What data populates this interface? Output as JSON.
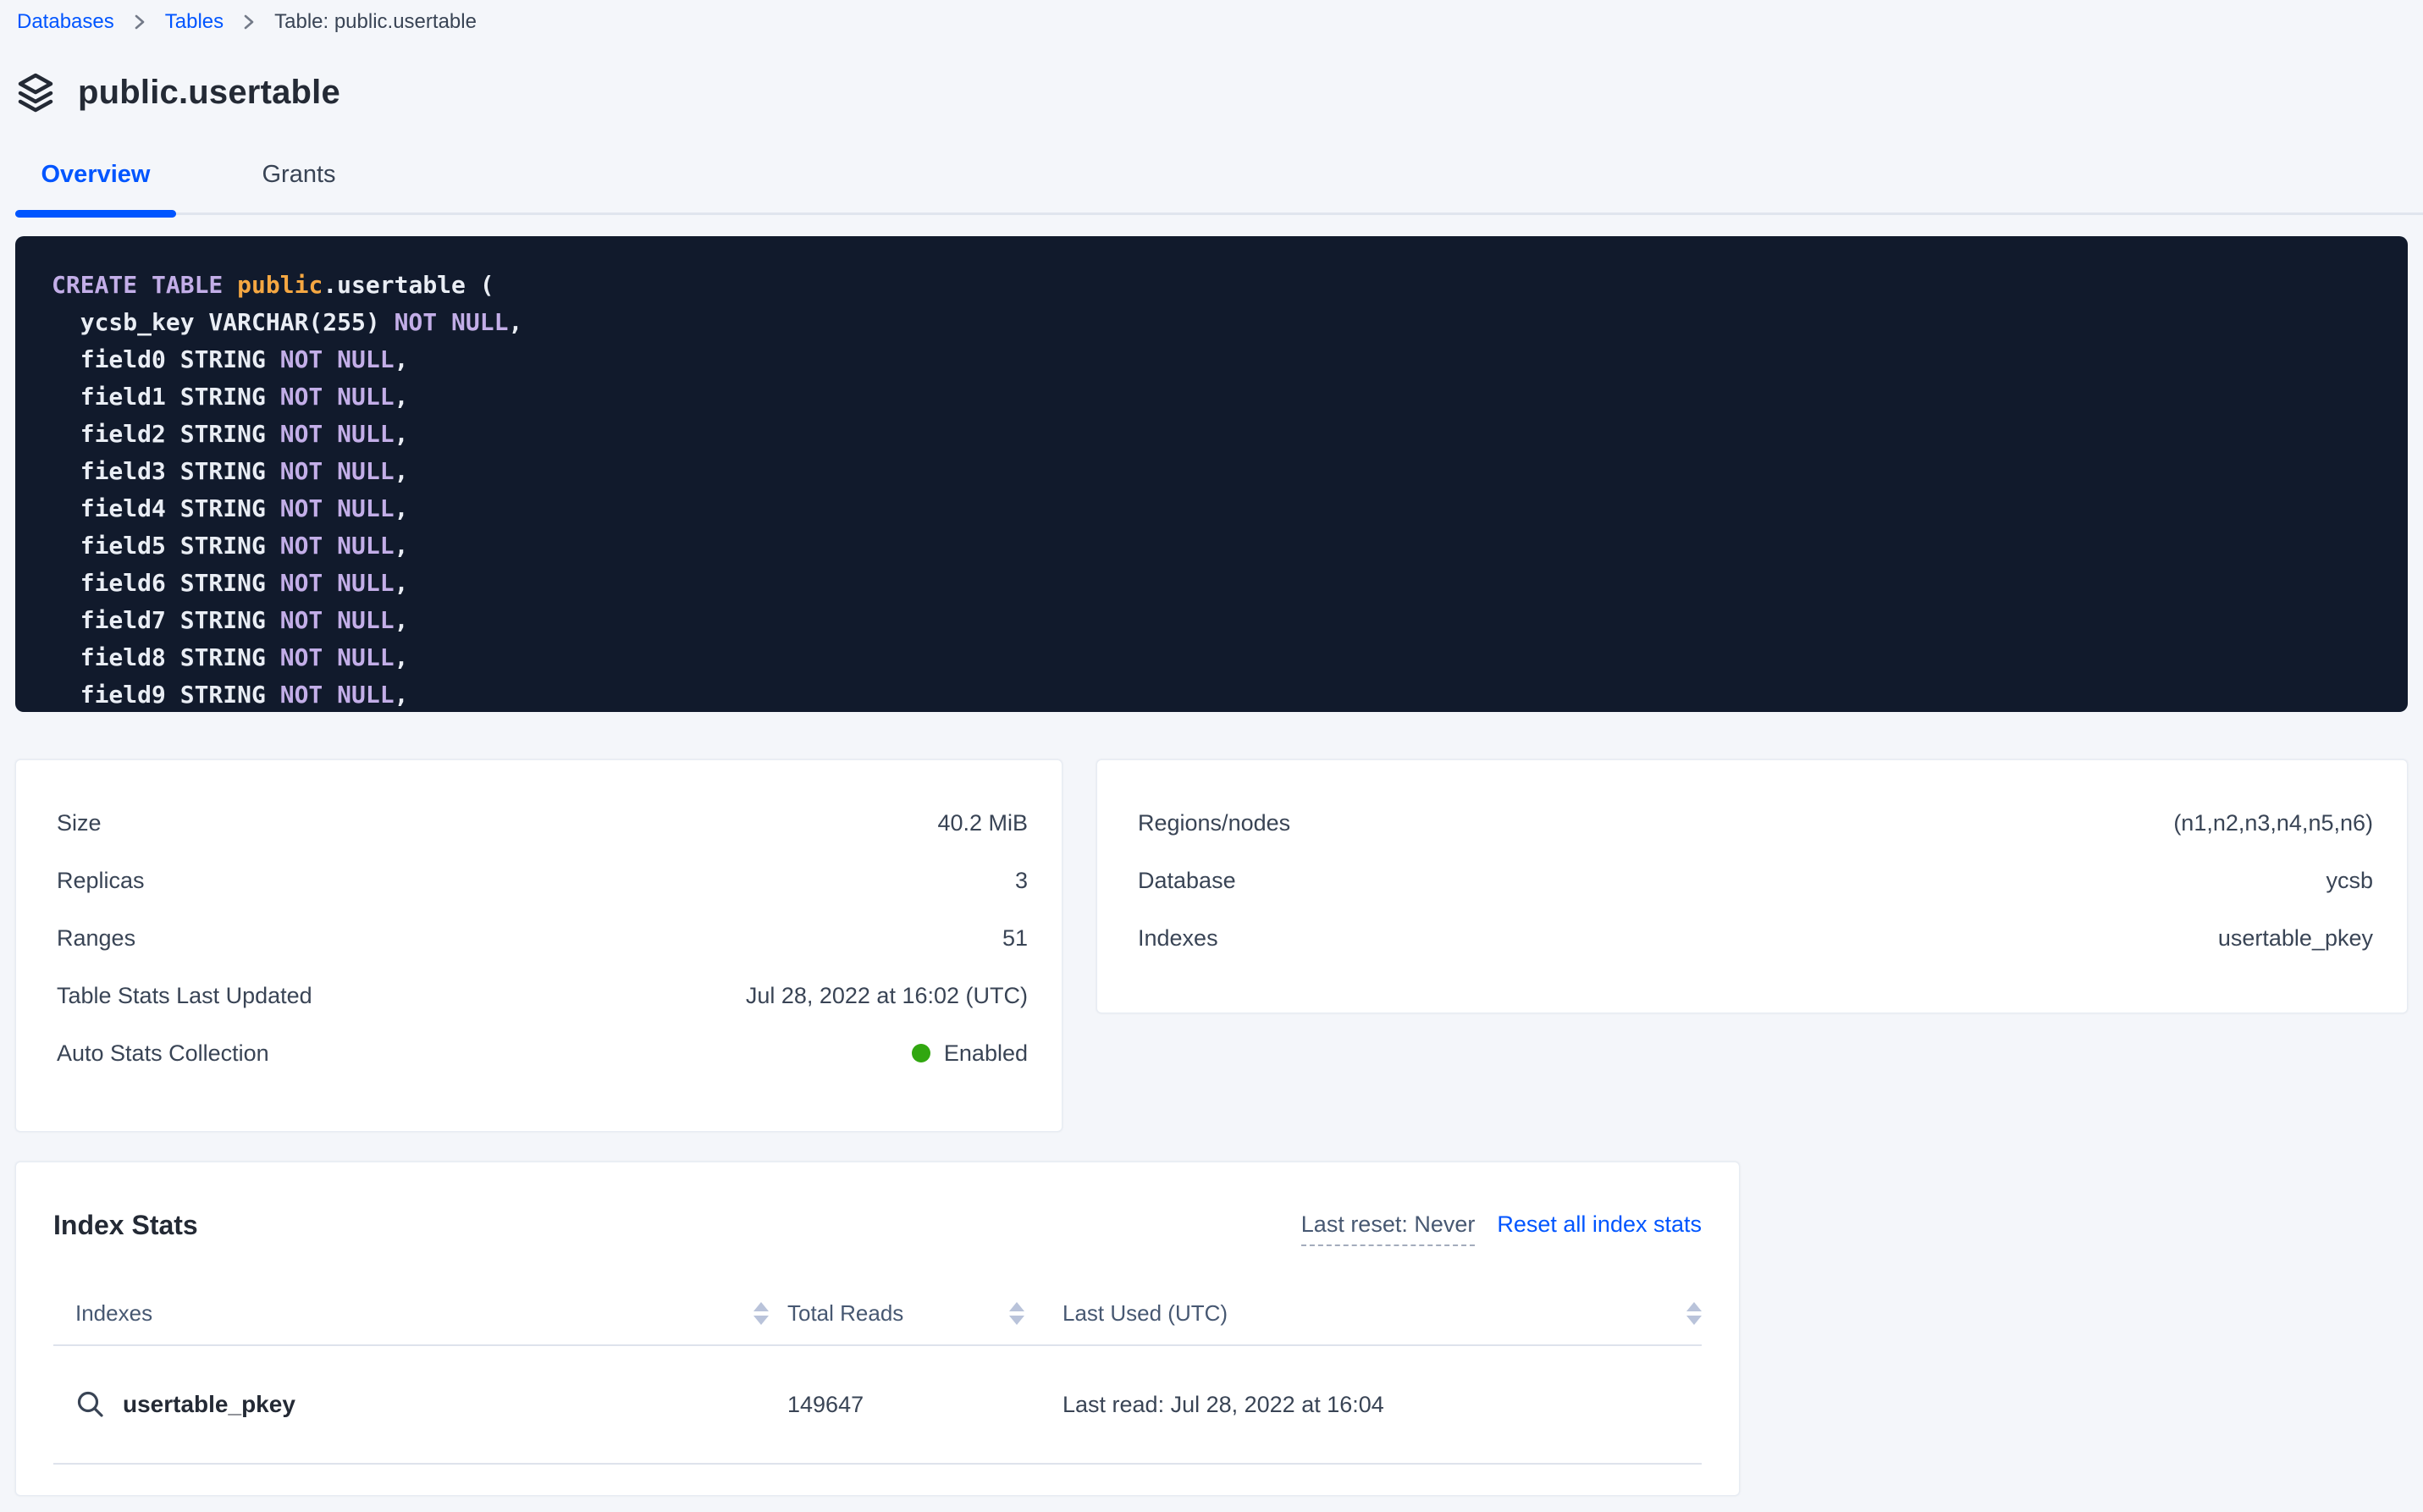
{
  "breadcrumb": {
    "items": [
      {
        "label": "Databases",
        "link": true
      },
      {
        "label": "Tables",
        "link": true
      },
      {
        "label": "Table: public.usertable",
        "link": false
      }
    ]
  },
  "page": {
    "title": "public.usertable"
  },
  "tabs": [
    {
      "label": "Overview",
      "active": true
    },
    {
      "label": "Grants",
      "active": false
    }
  ],
  "sql": {
    "lines": [
      [
        {
          "c": "kw",
          "t": "CREATE TABLE "
        },
        {
          "c": "schema",
          "t": "public"
        },
        {
          "c": "plain",
          "t": ".usertable ("
        }
      ],
      [
        {
          "c": "plain",
          "t": "  ycsb_key VARCHAR(255) "
        },
        {
          "c": "kw",
          "t": "NOT NULL"
        },
        {
          "c": "plain",
          "t": ","
        }
      ],
      [
        {
          "c": "plain",
          "t": "  field0 STRING "
        },
        {
          "c": "kw",
          "t": "NOT NULL"
        },
        {
          "c": "plain",
          "t": ","
        }
      ],
      [
        {
          "c": "plain",
          "t": "  field1 STRING "
        },
        {
          "c": "kw",
          "t": "NOT NULL"
        },
        {
          "c": "plain",
          "t": ","
        }
      ],
      [
        {
          "c": "plain",
          "t": "  field2 STRING "
        },
        {
          "c": "kw",
          "t": "NOT NULL"
        },
        {
          "c": "plain",
          "t": ","
        }
      ],
      [
        {
          "c": "plain",
          "t": "  field3 STRING "
        },
        {
          "c": "kw",
          "t": "NOT NULL"
        },
        {
          "c": "plain",
          "t": ","
        }
      ],
      [
        {
          "c": "plain",
          "t": "  field4 STRING "
        },
        {
          "c": "kw",
          "t": "NOT NULL"
        },
        {
          "c": "plain",
          "t": ","
        }
      ],
      [
        {
          "c": "plain",
          "t": "  field5 STRING "
        },
        {
          "c": "kw",
          "t": "NOT NULL"
        },
        {
          "c": "plain",
          "t": ","
        }
      ],
      [
        {
          "c": "plain",
          "t": "  field6 STRING "
        },
        {
          "c": "kw",
          "t": "NOT NULL"
        },
        {
          "c": "plain",
          "t": ","
        }
      ],
      [
        {
          "c": "plain",
          "t": "  field7 STRING "
        },
        {
          "c": "kw",
          "t": "NOT NULL"
        },
        {
          "c": "plain",
          "t": ","
        }
      ],
      [
        {
          "c": "plain",
          "t": "  field8 STRING "
        },
        {
          "c": "kw",
          "t": "NOT NULL"
        },
        {
          "c": "plain",
          "t": ","
        }
      ],
      [
        {
          "c": "plain",
          "t": "  field9 STRING "
        },
        {
          "c": "kw",
          "t": "NOT NULL"
        },
        {
          "c": "plain",
          "t": ","
        }
      ]
    ]
  },
  "details": {
    "left": [
      {
        "label": "Size",
        "value": "40.2 MiB"
      },
      {
        "label": "Replicas",
        "value": "3"
      },
      {
        "label": "Ranges",
        "value": "51"
      },
      {
        "label": "Table Stats Last Updated",
        "value": "Jul 28, 2022 at 16:02 (UTC)"
      },
      {
        "label": "Auto Stats Collection",
        "value": "Enabled",
        "status_dot": true
      }
    ],
    "right": [
      {
        "label": "Regions/nodes",
        "value": "(n1,n2,n3,n4,n5,n6)"
      },
      {
        "label": "Database",
        "value": "ycsb"
      },
      {
        "label": "Indexes",
        "value": "usertable_pkey"
      }
    ]
  },
  "index_stats": {
    "title": "Index Stats",
    "last_reset": "Last reset: Never",
    "reset_link": "Reset all index stats",
    "columns": [
      {
        "label": "Indexes"
      },
      {
        "label": "Total Reads"
      },
      {
        "label": "Last Used (UTC)"
      }
    ],
    "rows": [
      {
        "name": "usertable_pkey",
        "total_reads": "149647",
        "last_used": "Last read: Jul 28, 2022 at 16:04"
      }
    ]
  },
  "colors": {
    "accent_blue": "#0055FF",
    "status_green": "#31A710",
    "code_background": "#111A2C",
    "code_keyword": "#C3AEE8",
    "code_schema": "#F5A742",
    "page_background": "#F4F6FA"
  }
}
